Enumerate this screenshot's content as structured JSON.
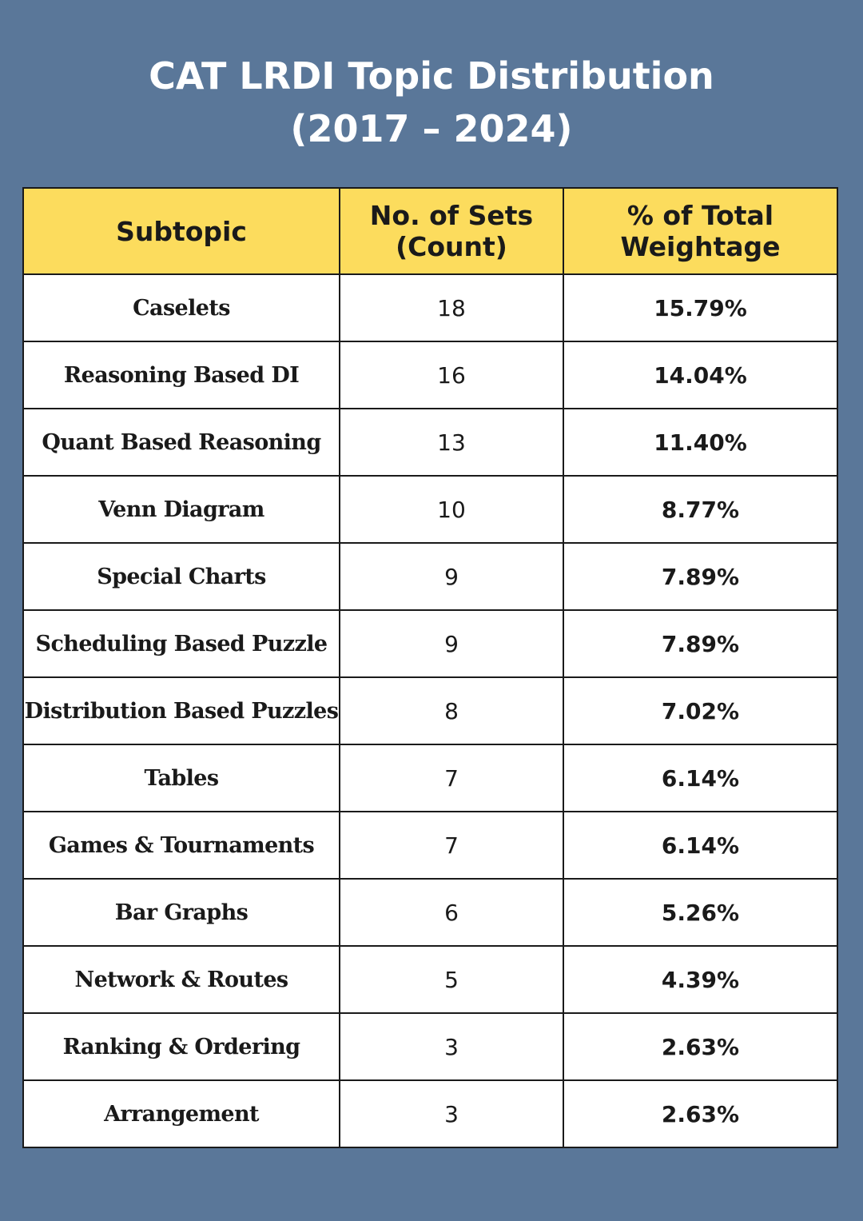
{
  "title": {
    "line1": "CAT LRDI Topic Distribution",
    "line2": "(2017 – 2024)"
  },
  "chart_data": {
    "type": "table",
    "title": "CAT LRDI Topic Distribution (2017 – 2024)",
    "columns": [
      {
        "line1": "Subtopic",
        "line2": ""
      },
      {
        "line1": "No. of Sets",
        "line2": "(Count)"
      },
      {
        "line1": "% of Total",
        "line2": "Weightage"
      }
    ],
    "rows": [
      {
        "subtopic": "Caselets",
        "count": "18",
        "weightage": "15.79%"
      },
      {
        "subtopic": "Reasoning Based DI",
        "count": "16",
        "weightage": "14.04%"
      },
      {
        "subtopic": "Quant Based Reasoning",
        "count": "13",
        "weightage": "11.40%"
      },
      {
        "subtopic": "Venn Diagram",
        "count": "10",
        "weightage": "8.77%"
      },
      {
        "subtopic": "Special Charts",
        "count": "9",
        "weightage": "7.89%"
      },
      {
        "subtopic": "Scheduling Based Puzzle",
        "count": "9",
        "weightage": "7.89%"
      },
      {
        "subtopic": "Distribution Based Puzzles",
        "count": "8",
        "weightage": "7.02%"
      },
      {
        "subtopic": "Tables",
        "count": "7",
        "weightage": "6.14%"
      },
      {
        "subtopic": "Games & Tournaments",
        "count": "7",
        "weightage": "6.14%"
      },
      {
        "subtopic": "Bar Graphs",
        "count": "6",
        "weightage": "5.26%"
      },
      {
        "subtopic": "Network & Routes",
        "count": "5",
        "weightage": "4.39%"
      },
      {
        "subtopic": "Ranking & Ordering",
        "count": "3",
        "weightage": "2.63%"
      },
      {
        "subtopic": "Arrangement",
        "count": "3",
        "weightage": "2.63%"
      }
    ]
  },
  "colors": {
    "background": "#5a7799",
    "header_fill": "#fcdc5d",
    "cell_fill": "#ffffff",
    "border": "#1a1a1a",
    "title_text": "#ffffff"
  }
}
